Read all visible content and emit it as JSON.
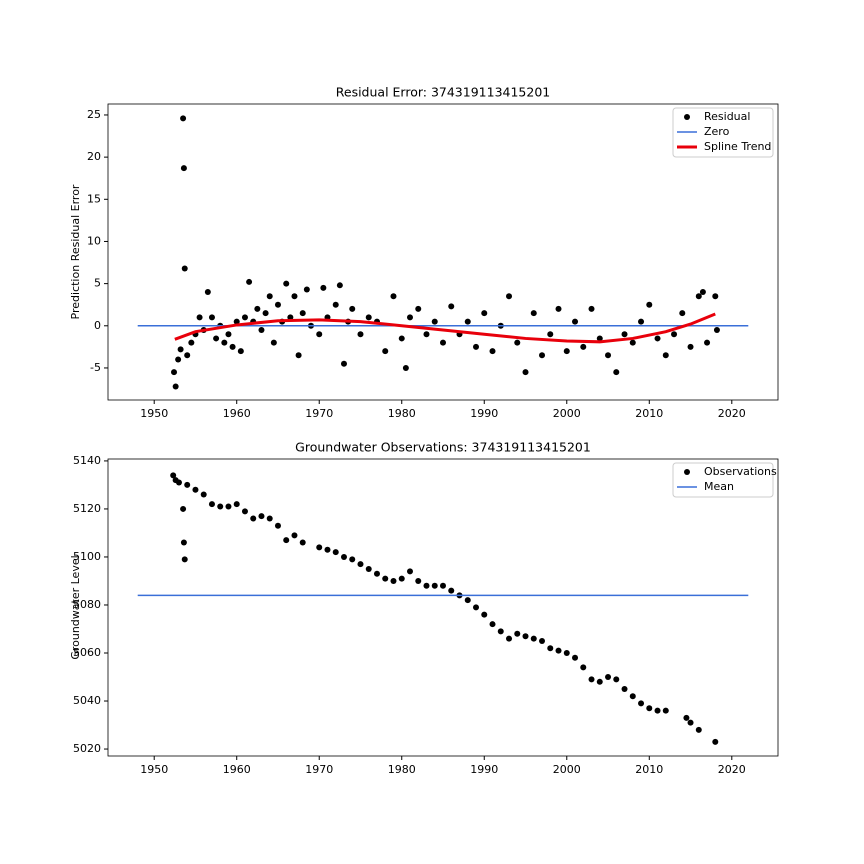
{
  "chart_data": [
    {
      "type": "scatter",
      "title": "Residual Error: 374319113415201",
      "y_label": "Prediction Residual Error",
      "xlim": [
        1944.4,
        2025.6
      ],
      "ylim": [
        -8.8,
        26.3
      ],
      "xticks": [
        1950,
        1960,
        1970,
        1980,
        1990,
        2000,
        2010,
        2020
      ],
      "yticks": [
        -5,
        0,
        5,
        10,
        15,
        20,
        25
      ],
      "legend": "upper right",
      "series": [
        {
          "name": "Residual",
          "color": "#000000",
          "marker": "dot",
          "x": [
            1952.4,
            1952.6,
            1952.9,
            1953.2,
            1953.5,
            1953.6,
            1953.7,
            1954,
            1954.5,
            1955,
            1955.5,
            1956,
            1956.5,
            1957,
            1957.5,
            1958,
            1958.5,
            1959,
            1959.5,
            1960,
            1960.5,
            1961,
            1961.5,
            1962,
            1962.5,
            1963,
            1963.5,
            1964,
            1964.5,
            1965,
            1965.5,
            1966,
            1966.5,
            1967,
            1967.5,
            1968,
            1968.5,
            1969,
            1970,
            1970.5,
            1971,
            1972,
            1972.5,
            1973,
            1973.5,
            1974,
            1975,
            1976,
            1977,
            1978,
            1979,
            1980,
            1980.5,
            1981,
            1982,
            1983,
            1984,
            1985,
            1986,
            1987,
            1988,
            1989,
            1990,
            1991,
            1992,
            1993,
            1994,
            1995,
            1996,
            1997,
            1998,
            1999,
            2000,
            2001,
            2002,
            2003,
            2004,
            2005,
            2006,
            2007,
            2008,
            2009,
            2010,
            2011,
            2012,
            2013,
            2014,
            2015,
            2016,
            2016.5,
            2017,
            2018,
            2018.2
          ],
          "values": [
            -5.5,
            -7.2,
            -4,
            -2.8,
            24.6,
            18.7,
            6.8,
            -3.5,
            -2,
            -1,
            1,
            -0.5,
            4,
            1,
            -1.5,
            0,
            -2,
            -1,
            -2.5,
            0.5,
            -3,
            1,
            5.2,
            0.5,
            2,
            -0.5,
            1.5,
            3.5,
            -2,
            2.5,
            0.5,
            5,
            1,
            3.5,
            -3.5,
            1.5,
            4.3,
            0,
            -1,
            4.5,
            1,
            2.5,
            4.8,
            -4.5,
            0.5,
            2,
            -1,
            1,
            0.5,
            -3,
            3.5,
            -1.5,
            -5,
            1,
            2,
            -1,
            0.5,
            -2,
            2.3,
            -1,
            0.5,
            -2.5,
            1.5,
            -3,
            0,
            3.5,
            -2,
            -5.5,
            1.5,
            -3.5,
            -1,
            2,
            -3,
            0.5,
            -2.5,
            2,
            -1.5,
            -3.5,
            -5.5,
            -1,
            -2,
            0.5,
            2.5,
            -1.5,
            -3.5,
            -1,
            1.5,
            -2.5,
            3.5,
            4,
            -2,
            3.5,
            -0.5
          ]
        },
        {
          "name": "Zero",
          "color": "#3a6fd8",
          "marker": "line",
          "x": [
            1948,
            2022
          ],
          "values": [
            0,
            0
          ]
        },
        {
          "name": "Spline Trend",
          "color": "#e8000b",
          "marker": "thick-line",
          "x": [
            1952.5,
            1955,
            1960,
            1965,
            1970,
            1975,
            1980,
            1985,
            1990,
            1995,
            2000,
            2004,
            2008,
            2012,
            2015,
            2018
          ],
          "values": [
            -1.6,
            -0.7,
            0.1,
            0.6,
            0.7,
            0.5,
            0,
            -0.5,
            -1,
            -1.5,
            -1.8,
            -1.9,
            -1.5,
            -0.7,
            0.2,
            1.4
          ]
        }
      ]
    },
    {
      "type": "scatter",
      "title": "Groundwater Observations: 374319113415201",
      "y_label": "Groundwater Level",
      "xlim": [
        1944.4,
        2025.6
      ],
      "ylim": [
        5017.1,
        5140.8
      ],
      "xticks": [
        1950,
        1960,
        1970,
        1980,
        1990,
        2000,
        2010,
        2020
      ],
      "yticks": [
        5020,
        5040,
        5060,
        5080,
        5100,
        5120,
        5140
      ],
      "legend": "upper right",
      "series": [
        {
          "name": "Observations",
          "color": "#000000",
          "marker": "dot",
          "x": [
            1952.3,
            1952.6,
            1953,
            1953.5,
            1953.6,
            1953.7,
            1954,
            1955,
            1956,
            1957,
            1958,
            1959,
            1960,
            1961,
            1962,
            1963,
            1964,
            1965,
            1966,
            1967,
            1968,
            1970,
            1971,
            1972,
            1973,
            1974,
            1975,
            1976,
            1977,
            1978,
            1979,
            1980,
            1981,
            1982,
            1983,
            1984,
            1985,
            1986,
            1987,
            1988,
            1989,
            1990,
            1991,
            1992,
            1993,
            1994,
            1995,
            1996,
            1997,
            1998,
            1999,
            2000,
            2001,
            2002,
            2003,
            2004,
            2005,
            2006,
            2007,
            2008,
            2009,
            2010,
            2011,
            2012,
            2014.5,
            2015,
            2016,
            2018
          ],
          "values": [
            5134,
            5132,
            5131,
            5120,
            5106,
            5099,
            5130,
            5128,
            5126,
            5122,
            5121,
            5121,
            5122,
            5119,
            5116,
            5117,
            5116,
            5113,
            5107,
            5109,
            5106,
            5104,
            5103,
            5102,
            5100,
            5099,
            5097,
            5095,
            5093,
            5091,
            5090,
            5091,
            5094,
            5090,
            5088,
            5088,
            5088,
            5086,
            5084,
            5082,
            5079,
            5076,
            5072,
            5069,
            5066,
            5068,
            5067,
            5066,
            5065,
            5062,
            5061,
            5060,
            5058,
            5054,
            5049,
            5048,
            5050,
            5049,
            5045,
            5042,
            5039,
            5037,
            5036,
            5036,
            5033,
            5031,
            5028,
            5023
          ]
        },
        {
          "name": "Mean",
          "color": "#3a6fd8",
          "marker": "line",
          "x": [
            1948,
            2022
          ],
          "values": [
            5084,
            5084
          ]
        }
      ]
    }
  ]
}
